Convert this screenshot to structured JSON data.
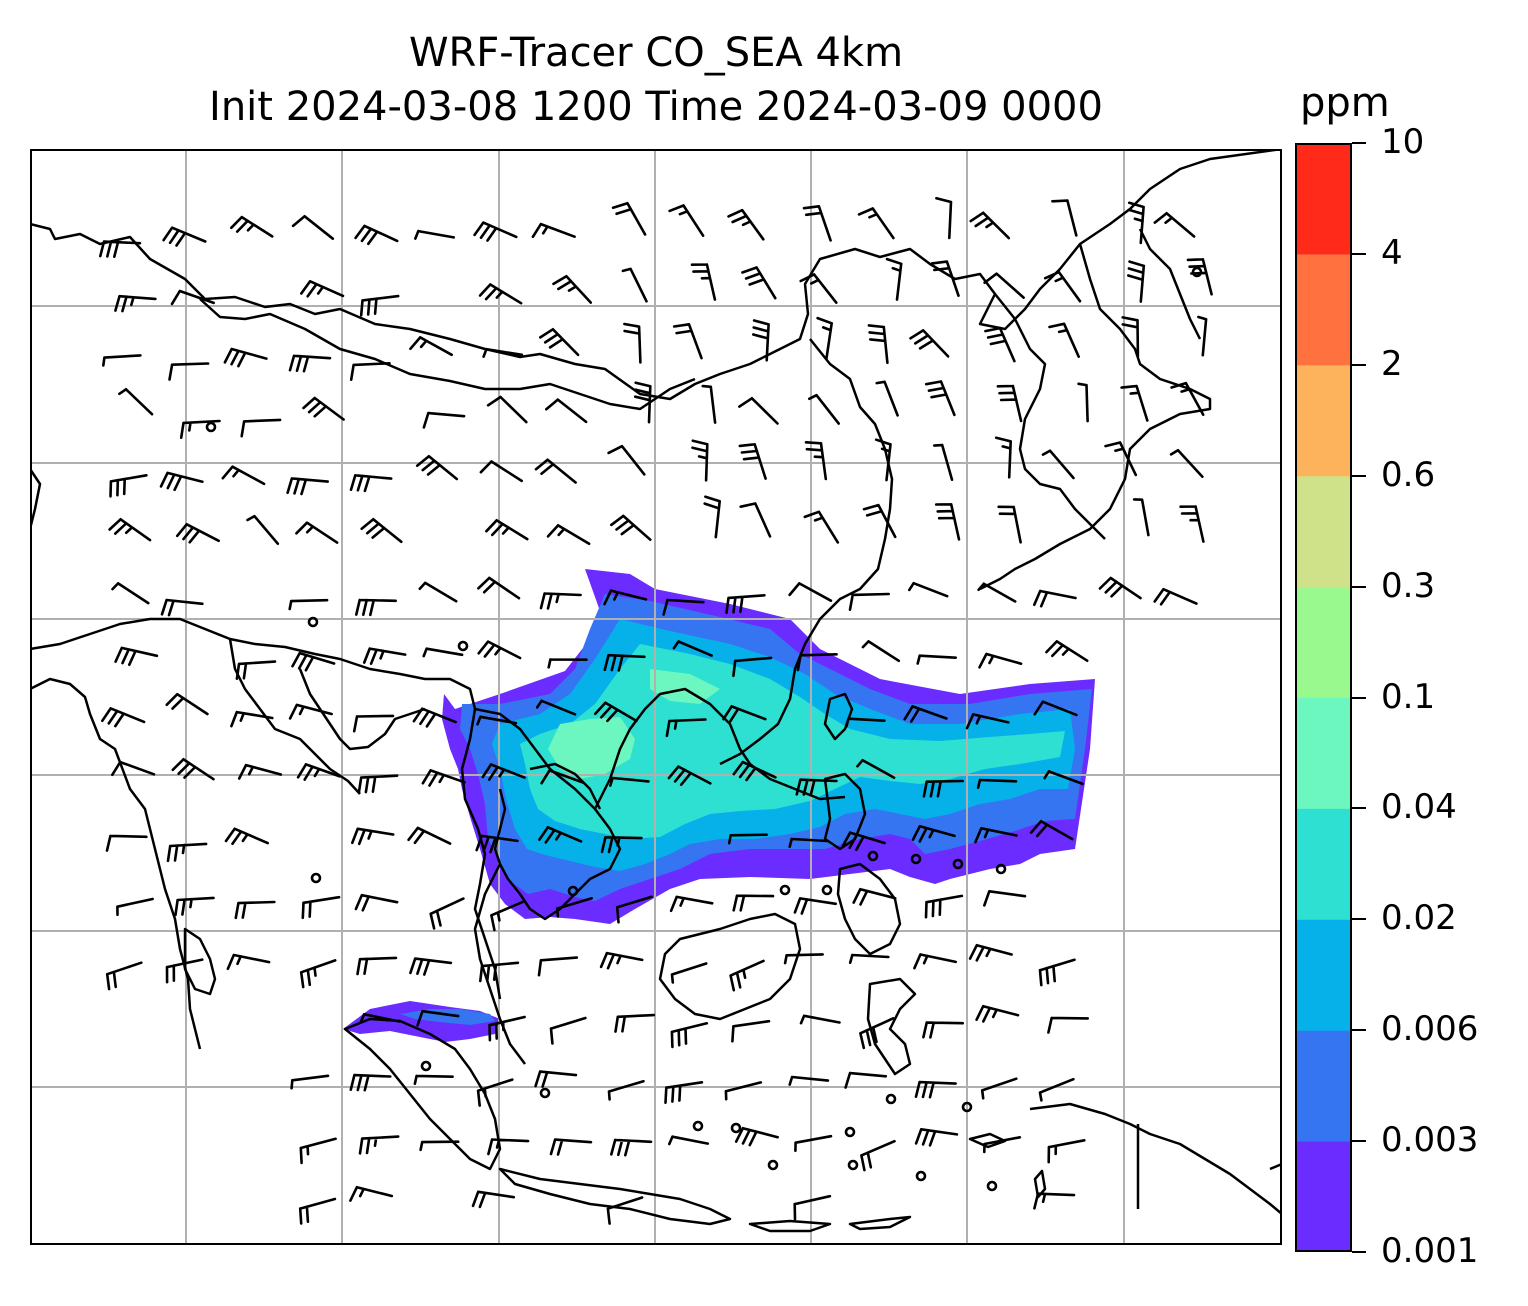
{
  "title": {
    "line1": "WRF-Tracer CO_SEA 4km",
    "line2": "Init 2024-03-08 1200 Time 2024-03-09 0000"
  },
  "colorbar": {
    "unit": "ppm",
    "levels": [
      "0.001",
      "0.003",
      "0.006",
      "0.02",
      "0.04",
      "0.1",
      "0.3",
      "0.6",
      "2",
      "4",
      "10"
    ],
    "colors": [
      "#6a2cff",
      "#3575f2",
      "#06b1ea",
      "#2ee0d2",
      "#6bf7bf",
      "#99f98e",
      "#cfe289",
      "#fdb35c",
      "#ff7240",
      "#ff2a1a"
    ]
  },
  "map": {
    "coastline_color": "#000000",
    "gridline_color": "#b0b0b0",
    "tracer_plume": "CO_SEA",
    "wind_barbs": "shown"
  }
}
